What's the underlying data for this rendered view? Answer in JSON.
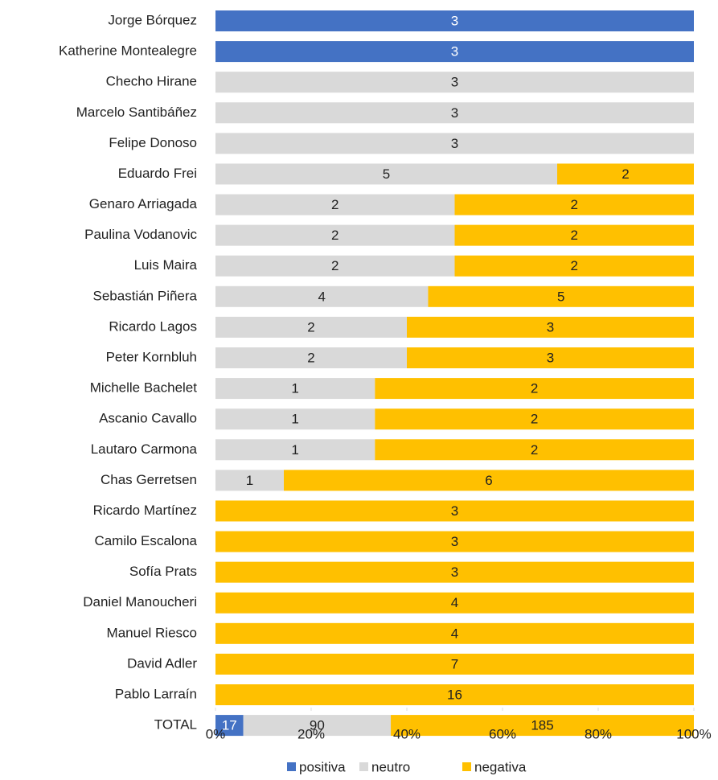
{
  "chart_data": {
    "type": "bar",
    "orientation": "horizontal",
    "stacked": "percent",
    "categories": [
      "Jorge Bórquez",
      "Katherine Montealegre",
      "Checho Hirane",
      "Marcelo Santibáñez",
      "Felipe Donoso",
      "Eduardo Frei",
      "Genaro Arriagada",
      "Paulina Vodanovic",
      "Luis Maira",
      "Sebastián Piñera",
      "Ricardo Lagos",
      "Peter Kornbluh",
      "Michelle Bachelet",
      "Ascanio Cavallo",
      "Lautaro Carmona",
      "Chas Gerretsen",
      "Ricardo Martínez",
      "Camilo Escalona",
      "Sofía Prats",
      "Daniel Manoucheri",
      "Manuel Riesco",
      "David Adler",
      "Pablo Larraín",
      "TOTAL"
    ],
    "series": [
      {
        "name": "positiva",
        "color": "#4472c4",
        "label_color": "#ffffff",
        "values": [
          3,
          3,
          null,
          null,
          null,
          null,
          null,
          null,
          null,
          null,
          null,
          null,
          null,
          null,
          null,
          null,
          null,
          null,
          null,
          null,
          null,
          null,
          null,
          17
        ]
      },
      {
        "name": "neutro",
        "color": "#d9d9d9",
        "label_color": "#222222",
        "values": [
          null,
          null,
          3,
          3,
          3,
          5,
          2,
          2,
          2,
          4,
          2,
          2,
          1,
          1,
          1,
          1,
          null,
          null,
          null,
          null,
          null,
          null,
          null,
          90
        ]
      },
      {
        "name": "negativa",
        "color": "#ffc000",
        "label_color": "#222222",
        "values": [
          null,
          null,
          null,
          null,
          null,
          2,
          2,
          2,
          2,
          5,
          3,
          3,
          2,
          2,
          2,
          6,
          3,
          3,
          3,
          4,
          4,
          7,
          16,
          185
        ]
      }
    ],
    "xlim": [
      0,
      100
    ],
    "xticks": [
      {
        "value": 0,
        "label": "0%"
      },
      {
        "value": 20,
        "label": "20%"
      },
      {
        "value": 40,
        "label": "40%"
      },
      {
        "value": 60,
        "label": "60%"
      },
      {
        "value": 80,
        "label": "80%"
      },
      {
        "value": 100,
        "label": "100%"
      }
    ],
    "legend": "bottom"
  }
}
